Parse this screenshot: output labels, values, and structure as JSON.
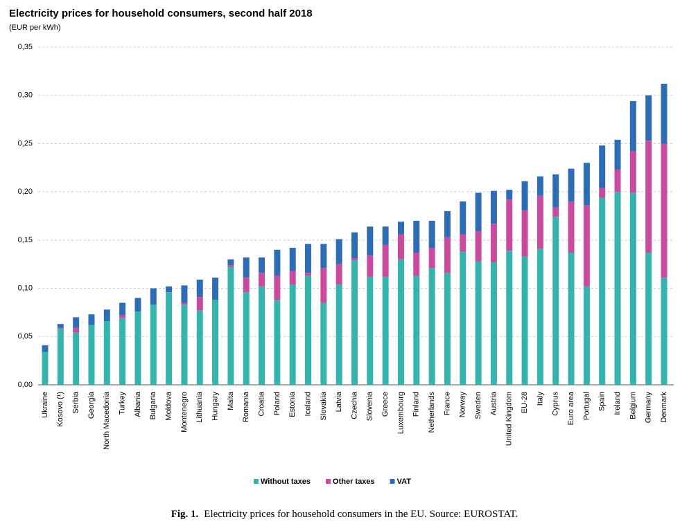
{
  "chart_data": {
    "type": "stacked_bar",
    "title": "Electricity prices for household consumers, second half 2018",
    "subtitle": "(EUR per kWh)",
    "categories": [
      "Ukraine",
      "Kosovo (¹)",
      "Serbia",
      "Georgia",
      "North Macedonia",
      "Turkey",
      "Albania",
      "Bulgaria",
      "Moldova",
      "Montenegro",
      "Lithuania",
      "Hungary",
      "Malta",
      "Romania",
      "Croatia",
      "Poland",
      "Estonia",
      "Iceland",
      "Slovakia",
      "Latvia",
      "Czechia",
      "Slovenia",
      "Greece",
      "Luxembourg",
      "Finland",
      "Netherlands",
      "France",
      "Norway",
      "Sweden",
      "Austria",
      "United Kingdom",
      "EU-28",
      "Italy",
      "Cyprus",
      "Euro area",
      "Portugal",
      "Spain",
      "Ireland",
      "Belgium",
      "Germany",
      "Denmark"
    ],
    "series": [
      {
        "name": "Without taxes",
        "color": "#35b3ad",
        "values": [
          0.034,
          0.058,
          0.054,
          0.062,
          0.066,
          0.069,
          0.076,
          0.083,
          0.096,
          0.083,
          0.077,
          0.088,
          0.122,
          0.096,
          0.102,
          0.088,
          0.104,
          0.113,
          0.085,
          0.104,
          0.129,
          0.112,
          0.112,
          0.13,
          0.113,
          0.121,
          0.116,
          0.138,
          0.128,
          0.127,
          0.139,
          0.133,
          0.141,
          0.174,
          0.137,
          0.102,
          0.194,
          0.2,
          0.199,
          0.137,
          0.111
        ]
      },
      {
        "name": "Other taxes",
        "color": "#c94b9f",
        "values": [
          0,
          0.001,
          0.005,
          0,
          0,
          0.003,
          0,
          0,
          0,
          0.002,
          0.014,
          0,
          0.002,
          0.015,
          0.014,
          0.025,
          0.014,
          0.003,
          0.036,
          0.021,
          0.002,
          0.022,
          0.033,
          0.026,
          0.024,
          0.021,
          0.037,
          0.018,
          0.031,
          0.04,
          0.053,
          0.048,
          0.055,
          0.01,
          0.053,
          0.084,
          0.01,
          0.023,
          0.043,
          0.116,
          0.139
        ]
      },
      {
        "name": "VAT",
        "color": "#2d6db5",
        "values": [
          0.007,
          0.004,
          0.011,
          0.011,
          0.012,
          0.013,
          0.014,
          0.017,
          0.006,
          0.018,
          0.018,
          0.023,
          0.006,
          0.021,
          0.016,
          0.027,
          0.024,
          0.03,
          0.025,
          0.026,
          0.027,
          0.03,
          0.019,
          0.013,
          0.033,
          0.028,
          0.027,
          0.034,
          0.04,
          0.034,
          0.01,
          0.03,
          0.02,
          0.034,
          0.034,
          0.044,
          0.044,
          0.031,
          0.052,
          0.047,
          0.062
        ]
      }
    ],
    "ylim": [
      0,
      0.35
    ],
    "yticks": [
      {
        "value": 0,
        "label": "0,00"
      },
      {
        "value": 0.05,
        "label": "0,05"
      },
      {
        "value": 0.1,
        "label": "0,10"
      },
      {
        "value": 0.15,
        "label": "0,15"
      },
      {
        "value": 0.2,
        "label": "0,20"
      },
      {
        "value": 0.25,
        "label": "0,25"
      },
      {
        "value": 0.3,
        "label": "0,30"
      },
      {
        "value": 0.35,
        "label": "0,35"
      }
    ],
    "grid": true,
    "legend": "bottom"
  },
  "caption": {
    "label": "Fig. 1.",
    "text": "Electricity prices for household consumers in the EU. Source: EUROSTAT."
  }
}
